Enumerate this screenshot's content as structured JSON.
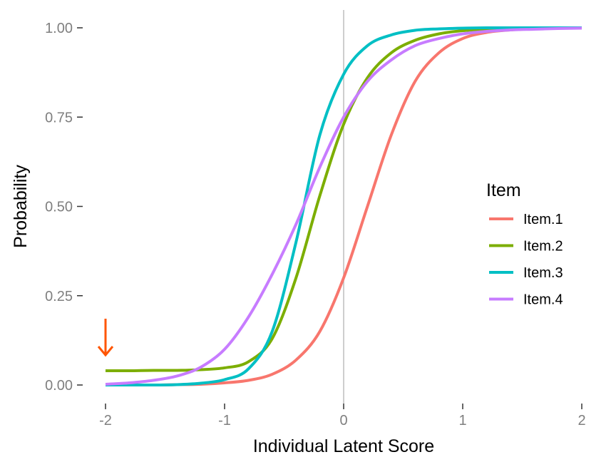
{
  "chart_data": {
    "type": "line",
    "xlabel": "Individual Latent Score",
    "ylabel": "Probability",
    "xlim": [
      -2,
      2
    ],
    "ylim": [
      0,
      1
    ],
    "x_ticks": [
      -2,
      -1,
      0,
      1,
      2
    ],
    "x_tick_labels": [
      "-2",
      "-1",
      "0",
      "1",
      "2"
    ],
    "y_ticks": [
      0,
      0.25,
      0.5,
      0.75,
      1
    ],
    "y_tick_labels": [
      "0.00",
      "0.25",
      "0.50",
      "0.75",
      "1.00"
    ],
    "grid": false,
    "reference_line_x": 0,
    "legend": {
      "title": "Item",
      "position": "right"
    },
    "annotation": {
      "type": "arrow",
      "color": "#ff5500",
      "points_at": {
        "x": -2,
        "y": 0.04
      }
    },
    "x": [
      -2.0,
      -1.8,
      -1.6,
      -1.4,
      -1.2,
      -1.0,
      -0.8,
      -0.6,
      -0.4,
      -0.2,
      0.0,
      0.2,
      0.4,
      0.6,
      0.8,
      1.0,
      1.2,
      1.4,
      1.6,
      1.8,
      2.0
    ],
    "series": [
      {
        "name": "Item.1",
        "color": "#F8766D",
        "values": [
          0.0,
          0.0,
          0.0,
          0.001,
          0.002,
          0.006,
          0.013,
          0.03,
          0.07,
          0.15,
          0.3,
          0.5,
          0.7,
          0.85,
          0.93,
          0.97,
          0.987,
          0.994,
          0.997,
          0.999,
          1.0
        ]
      },
      {
        "name": "Item.2",
        "color": "#7CAE00",
        "values": [
          0.04,
          0.04,
          0.041,
          0.041,
          0.043,
          0.048,
          0.065,
          0.13,
          0.3,
          0.53,
          0.73,
          0.86,
          0.93,
          0.965,
          0.983,
          0.992,
          0.996,
          0.998,
          0.999,
          1.0,
          1.0
        ]
      },
      {
        "name": "Item.3",
        "color": "#00BFC4",
        "values": [
          0.0,
          0.0,
          0.0,
          0.001,
          0.005,
          0.015,
          0.045,
          0.15,
          0.4,
          0.7,
          0.87,
          0.95,
          0.98,
          0.993,
          0.997,
          0.999,
          1.0,
          1.0,
          1.0,
          1.0,
          1.0
        ]
      },
      {
        "name": "Item.4",
        "color": "#C77CFF",
        "values": [
          0.002,
          0.006,
          0.013,
          0.025,
          0.05,
          0.1,
          0.19,
          0.31,
          0.45,
          0.61,
          0.75,
          0.85,
          0.91,
          0.95,
          0.97,
          0.983,
          0.99,
          0.994,
          0.996,
          0.998,
          0.999
        ]
      }
    ]
  }
}
